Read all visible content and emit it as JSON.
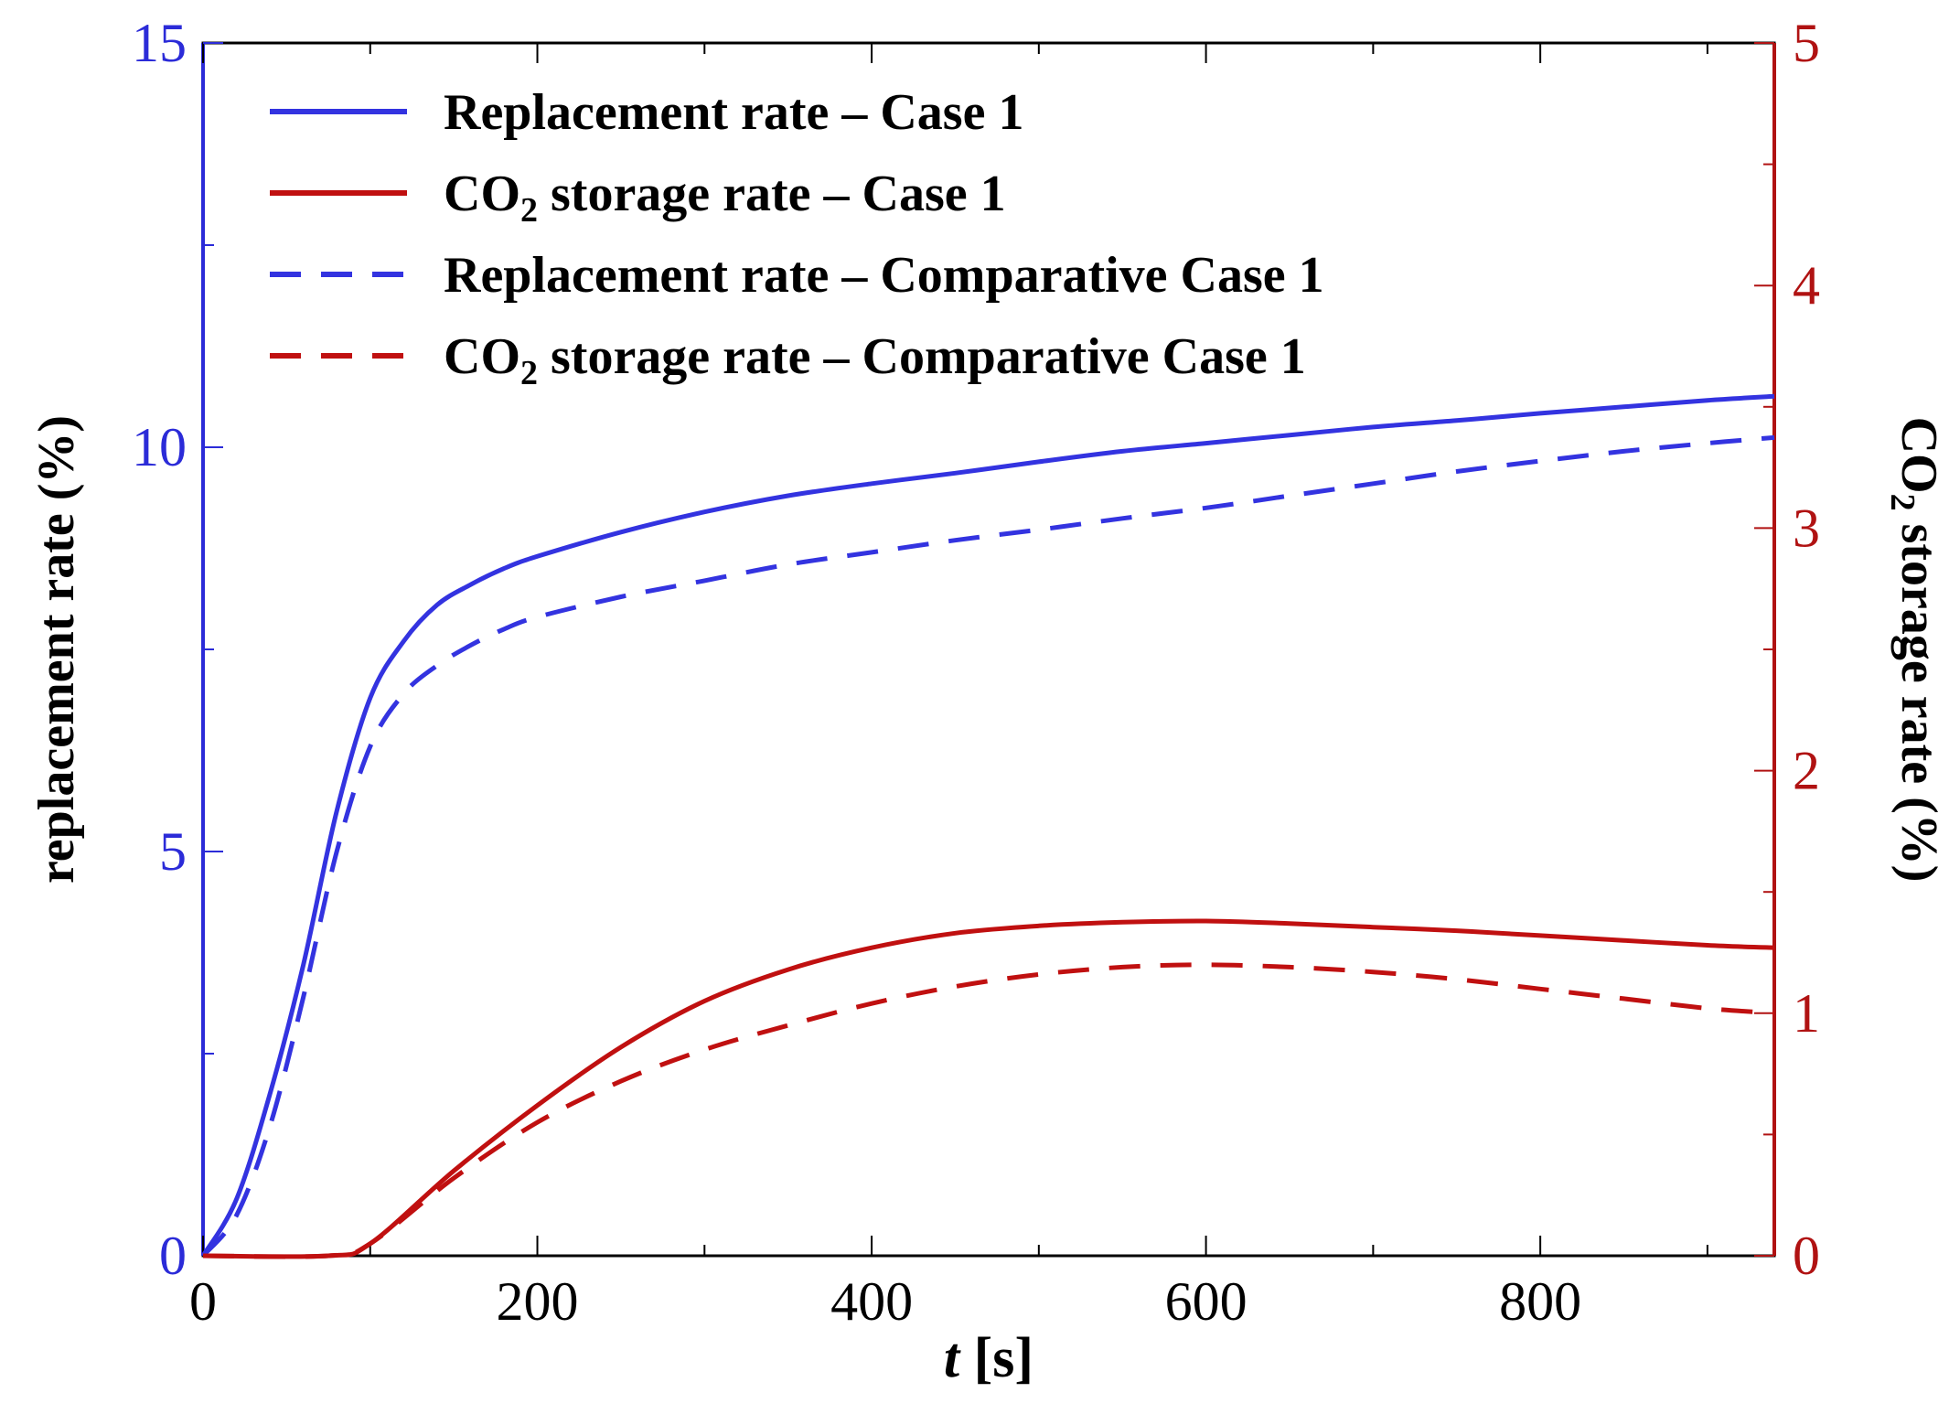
{
  "chart_data": {
    "type": "line",
    "title": "",
    "xlabel_italic": "t",
    "xlabel_rest": " [s]",
    "ylabel_left": "replacement rate (%)",
    "ylabel_right_prefix": "CO",
    "ylabel_right_sub": "2",
    "ylabel_right_suffix": " storage rate (%)",
    "xlim": [
      0,
      940
    ],
    "ylim_left": [
      0,
      15
    ],
    "ylim_right": [
      0,
      5
    ],
    "xticks": [
      0,
      200,
      400,
      600,
      800
    ],
    "xtick_labels": [
      "0",
      "200",
      "400",
      "600",
      "800"
    ],
    "yticks_left": [
      0,
      5,
      10,
      15
    ],
    "ytick_labels_left": [
      "0",
      "5",
      "10",
      "15"
    ],
    "yticks_right": [
      0,
      1,
      2,
      3,
      4,
      5
    ],
    "ytick_labels_right": [
      "0",
      "1",
      "2",
      "3",
      "4",
      "5"
    ],
    "grid": false,
    "legend_position": "top-left",
    "colors": {
      "left_axis": "#2b2bd8",
      "right_axis": "#b01212",
      "blue": "#3333e0",
      "red": "#c01010"
    },
    "series": [
      {
        "name": "Replacement rate – Case 1",
        "legend_prefix": "Replacement rate – Case 1",
        "legend_sub": "",
        "legend_suffix": "",
        "axis": "left",
        "color": "#3333e0",
        "dash": "solid",
        "x": [
          0,
          20,
          40,
          60,
          80,
          100,
          120,
          140,
          160,
          180,
          200,
          250,
          300,
          350,
          400,
          450,
          500,
          550,
          600,
          650,
          700,
          750,
          800,
          850,
          900,
          940
        ],
        "y": [
          0,
          0.7,
          2.0,
          3.6,
          5.5,
          6.9,
          7.6,
          8.05,
          8.3,
          8.5,
          8.65,
          8.95,
          9.2,
          9.4,
          9.55,
          9.68,
          9.82,
          9.95,
          10.05,
          10.15,
          10.25,
          10.33,
          10.42,
          10.5,
          10.58,
          10.63
        ]
      },
      {
        "name": "CO2 storage rate – Case 1",
        "legend_prefix": "CO",
        "legend_sub": "2",
        "legend_suffix": " storage rate – Case 1",
        "axis": "right",
        "color": "#c01010",
        "dash": "solid",
        "x": [
          0,
          75,
          100,
          150,
          200,
          250,
          300,
          350,
          400,
          450,
          500,
          550,
          600,
          650,
          700,
          750,
          800,
          850,
          900,
          940
        ],
        "y": [
          0,
          0,
          0.05,
          0.35,
          0.62,
          0.86,
          1.05,
          1.18,
          1.27,
          1.33,
          1.36,
          1.375,
          1.38,
          1.37,
          1.355,
          1.34,
          1.32,
          1.3,
          1.28,
          1.27
        ]
      },
      {
        "name": "Replacement rate – Comparative Case 1",
        "legend_prefix": "Replacement rate – Comparative Case 1",
        "legend_sub": "",
        "legend_suffix": "",
        "axis": "left",
        "color": "#3333e0",
        "dash": "dashed",
        "x": [
          0,
          20,
          40,
          60,
          80,
          100,
          120,
          140,
          160,
          180,
          200,
          250,
          300,
          350,
          400,
          450,
          500,
          550,
          600,
          650,
          700,
          750,
          800,
          850,
          900,
          940
        ],
        "y": [
          0,
          0.5,
          1.6,
          3.2,
          5.0,
          6.3,
          6.95,
          7.3,
          7.55,
          7.75,
          7.9,
          8.15,
          8.35,
          8.55,
          8.7,
          8.85,
          8.98,
          9.12,
          9.25,
          9.4,
          9.55,
          9.7,
          9.83,
          9.95,
          10.05,
          10.12
        ]
      },
      {
        "name": "CO2 storage rate – Comparative Case 1",
        "legend_prefix": "CO",
        "legend_sub": "2",
        "legend_suffix": " storage rate – Comparative Case 1",
        "axis": "right",
        "color": "#c01010",
        "dash": "dashed",
        "x": [
          0,
          75,
          100,
          150,
          200,
          250,
          300,
          350,
          400,
          450,
          500,
          550,
          600,
          650,
          700,
          750,
          800,
          850,
          900,
          940
        ],
        "y": [
          0,
          0,
          0.05,
          0.32,
          0.55,
          0.72,
          0.85,
          0.95,
          1.04,
          1.11,
          1.16,
          1.19,
          1.2,
          1.19,
          1.17,
          1.14,
          1.1,
          1.06,
          1.02,
          1.0
        ]
      }
    ]
  }
}
